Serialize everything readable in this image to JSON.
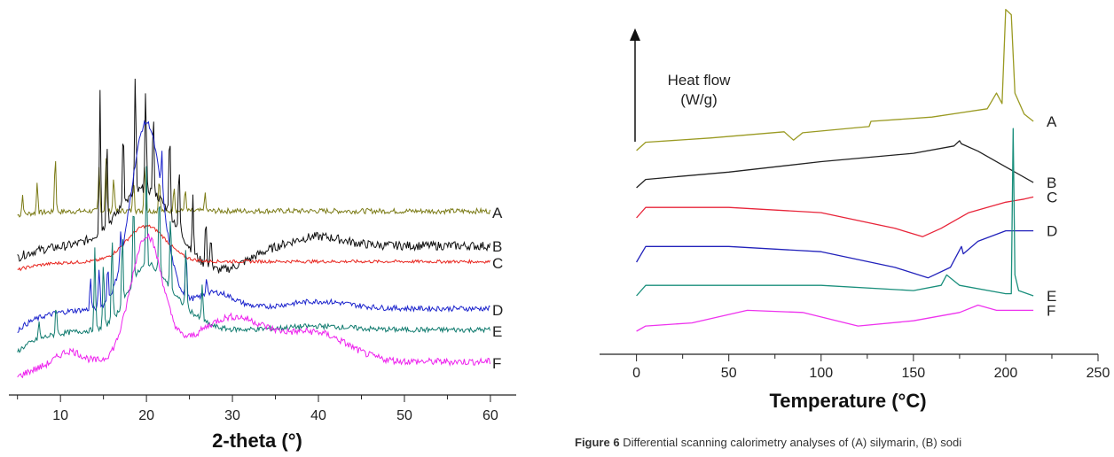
{
  "chart_data": [
    {
      "type": "line",
      "title": "",
      "xlabel": "2-theta (°)",
      "ylabel": "",
      "xlim": [
        4,
        63
      ],
      "x_ticks": [
        10,
        20,
        30,
        40,
        50,
        60
      ],
      "grid": false,
      "y_axis_visible": false,
      "series": [
        {
          "name": "A",
          "color": "#7b7b16"
        },
        {
          "name": "B",
          "color": "#111111"
        },
        {
          "name": "C",
          "color": "#e8251e"
        },
        {
          "name": "D",
          "color": "#1a22cc"
        },
        {
          "name": "E",
          "color": "#0f7a6e"
        },
        {
          "name": "F",
          "color": "#ee22ee"
        }
      ]
    },
    {
      "type": "line",
      "title": "",
      "xlabel": "Temperature (°C)",
      "ylabel": "",
      "annotation": "Heat flow\n(W/g)",
      "xlim": [
        -20,
        250
      ],
      "x_ticks": [
        0,
        50,
        100,
        150,
        200,
        250
      ],
      "grid": false,
      "y_axis_visible": false,
      "series": [
        {
          "name": "A",
          "color": "#9a9a22",
          "x": [
            0,
            5,
            40,
            80,
            85,
            90,
            120,
            126,
            127,
            160,
            190,
            195,
            198,
            200,
            203,
            205,
            210,
            215
          ],
          "y": [
            0.0,
            0.08,
            0.12,
            0.18,
            0.1,
            0.17,
            0.22,
            0.23,
            0.28,
            0.32,
            0.4,
            0.55,
            0.45,
            1.35,
            1.3,
            0.55,
            0.35,
            0.28
          ]
        },
        {
          "name": "B",
          "color": "#222222",
          "x": [
            0,
            5,
            50,
            100,
            150,
            172,
            175,
            176,
            185,
            200,
            215
          ],
          "y": [
            0.0,
            0.08,
            0.15,
            0.25,
            0.33,
            0.4,
            0.45,
            0.42,
            0.35,
            0.2,
            0.05
          ]
        },
        {
          "name": "C",
          "color": "#e8253a",
          "x": [
            0,
            5,
            50,
            100,
            140,
            155,
            165,
            180,
            200,
            210,
            215
          ],
          "y": [
            0.0,
            0.1,
            0.1,
            0.05,
            -0.1,
            -0.18,
            -0.1,
            0.05,
            0.15,
            0.18,
            0.2
          ]
        },
        {
          "name": "D",
          "color": "#2222bb",
          "x": [
            0,
            5,
            50,
            100,
            140,
            158,
            170,
            176,
            177,
            185,
            200,
            215
          ],
          "y": [
            0.0,
            0.15,
            0.15,
            0.1,
            -0.05,
            -0.15,
            -0.05,
            0.15,
            0.08,
            0.2,
            0.3,
            0.3
          ]
        },
        {
          "name": "E",
          "color": "#1a8f7c",
          "x": [
            0,
            5,
            50,
            100,
            150,
            165,
            168,
            175,
            200,
            203,
            204,
            205,
            207,
            215
          ],
          "y": [
            0.0,
            0.1,
            0.1,
            0.1,
            0.05,
            0.1,
            0.2,
            0.1,
            0.02,
            0.02,
            1.6,
            0.2,
            0.05,
            0.0
          ]
        },
        {
          "name": "F",
          "color": "#ee33ee",
          "x": [
            0,
            5,
            30,
            60,
            90,
            120,
            150,
            175,
            185,
            195,
            215
          ],
          "y": [
            0.0,
            0.05,
            0.08,
            0.2,
            0.18,
            0.05,
            0.1,
            0.18,
            0.25,
            0.2,
            0.2
          ]
        }
      ]
    }
  ],
  "caption": {
    "bold": "Figure 6",
    "text": " Differential scanning calorimetry analyses of (A) silymarin, (B) sodi"
  }
}
